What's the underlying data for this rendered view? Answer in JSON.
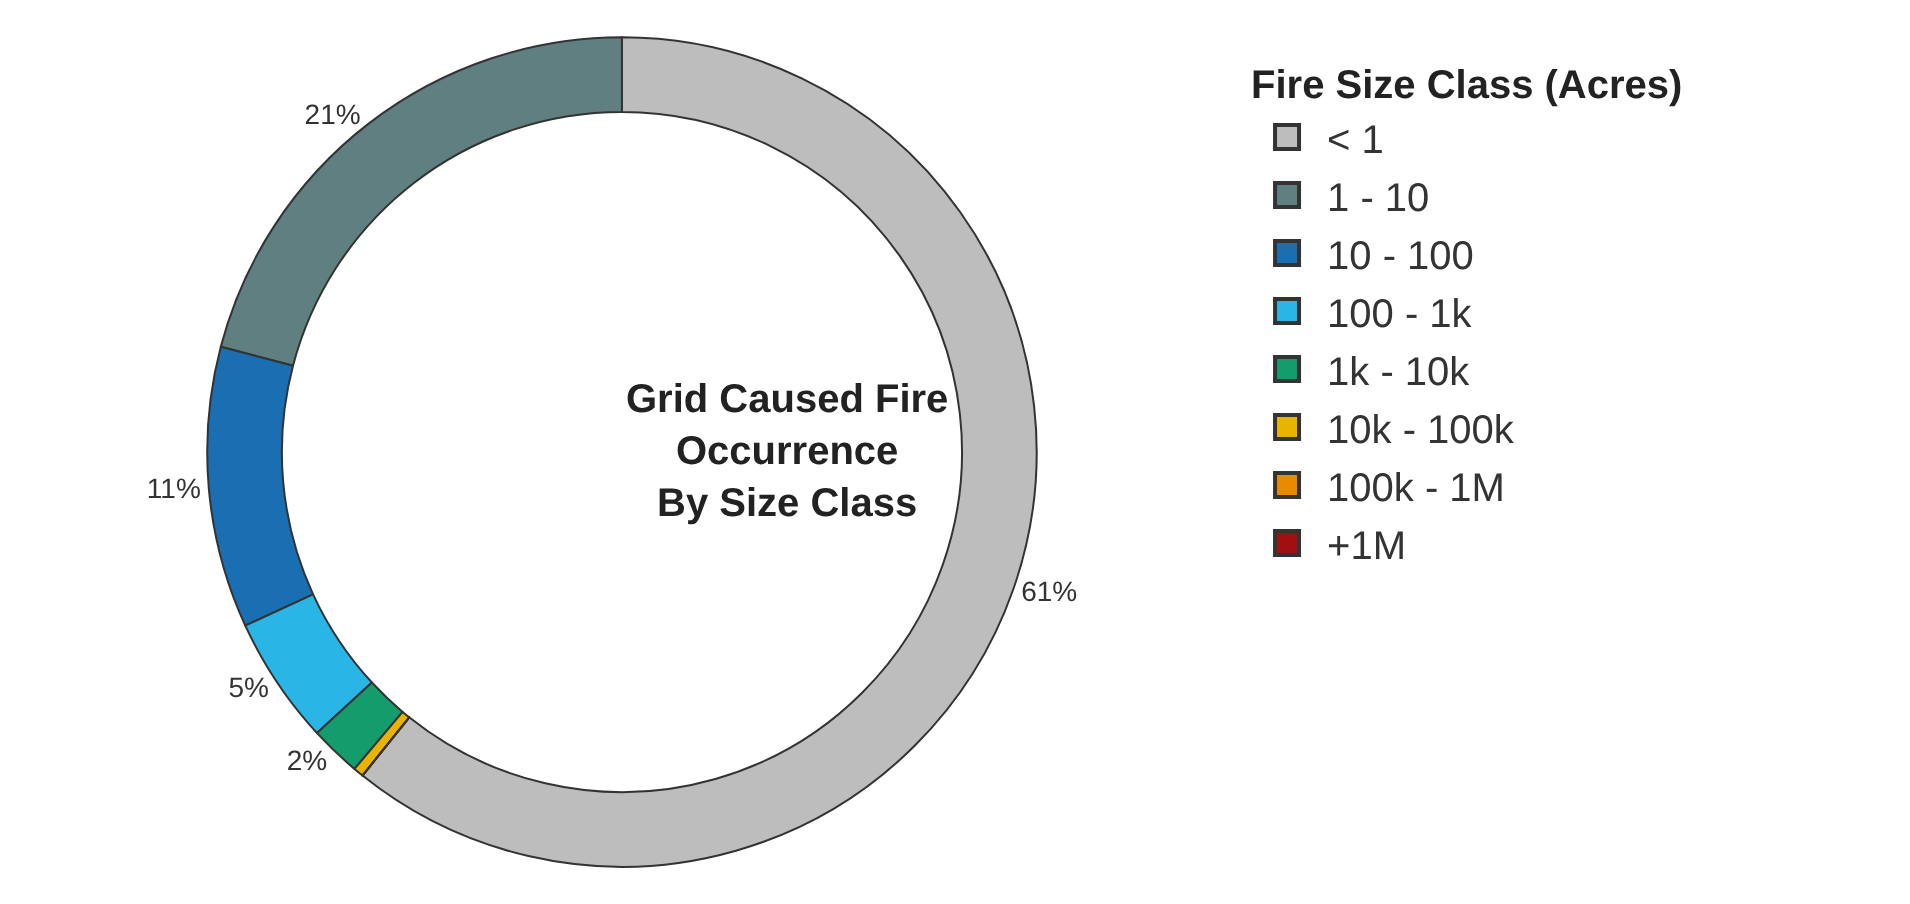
{
  "chart_data": {
    "type": "donut",
    "title": "Grid Caused Fire\nOccurrence\nBy Size Class",
    "legend_title": "Fire Size Class (Acres)",
    "categories": [
      "< 1",
      "1 - 10",
      "10 - 100",
      "100 - 1k",
      "1k - 10k",
      "10k - 100k",
      "100k - 1M",
      "+1M"
    ],
    "values": [
      61,
      21,
      11,
      5,
      2,
      0.4,
      0,
      0
    ],
    "colors": [
      "#bdbdbd",
      "#5f7f80",
      "#1a6fb3",
      "#29b6e6",
      "#149c6c",
      "#e8b400",
      "#e88a00",
      "#a01010"
    ],
    "value_labels": [
      "61%",
      "21%",
      "11%",
      "5%",
      "2%",
      null,
      null,
      null
    ],
    "legend": "right"
  }
}
